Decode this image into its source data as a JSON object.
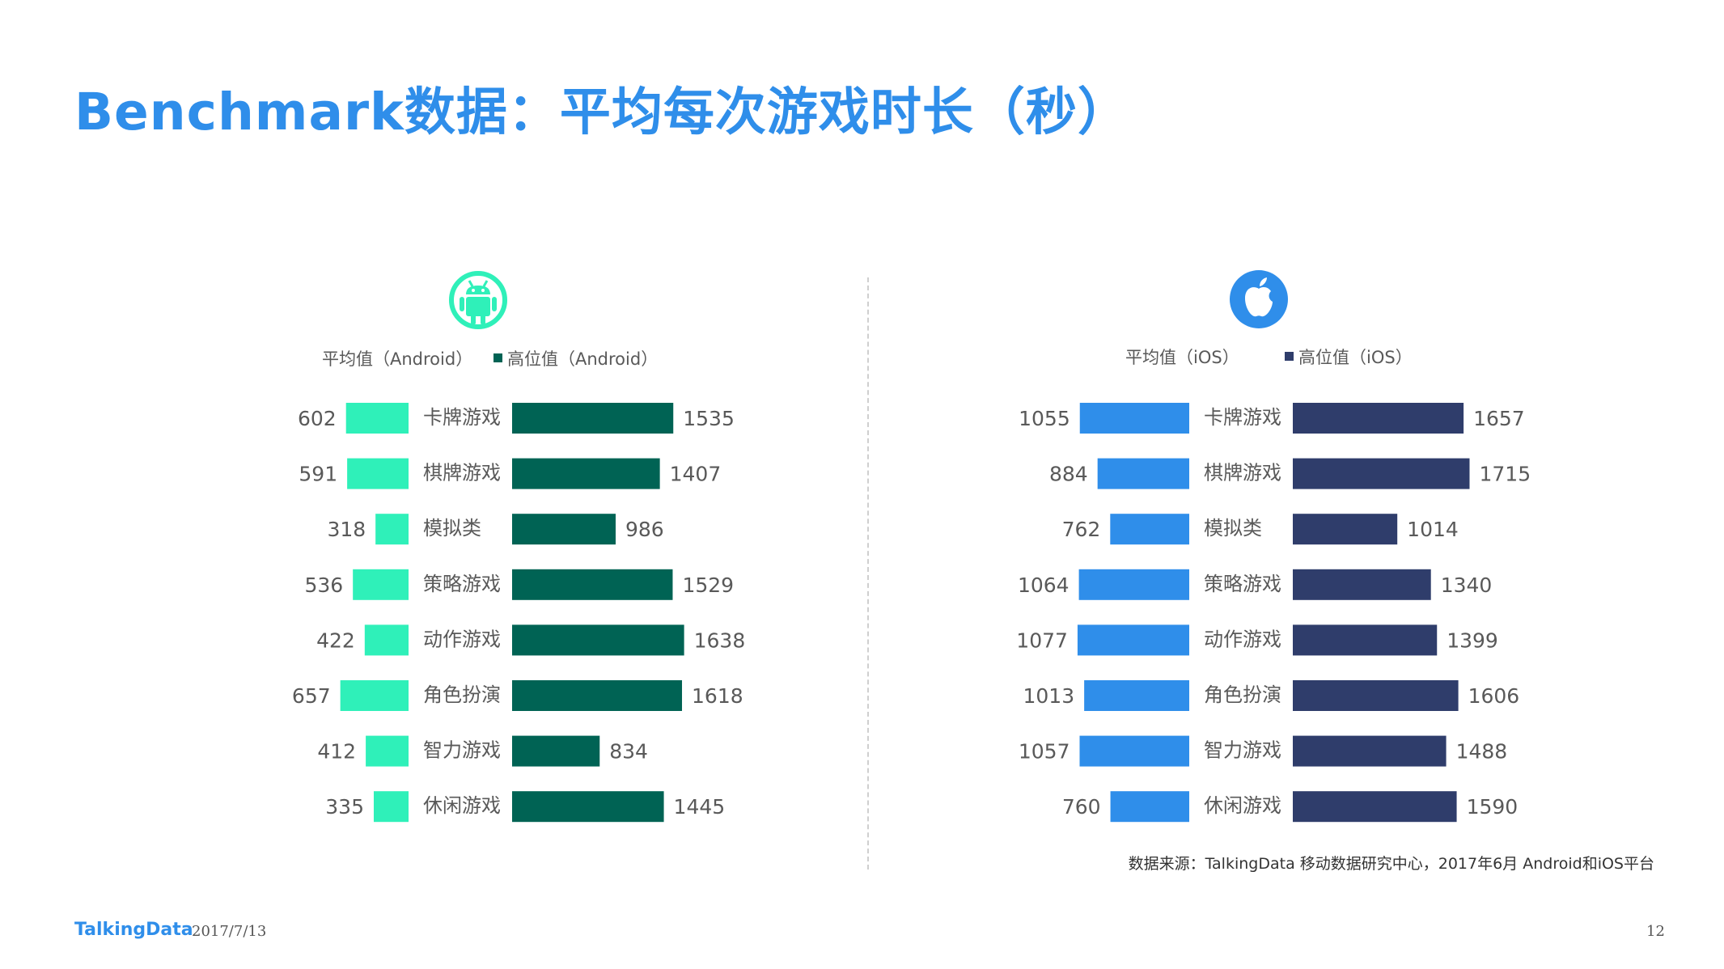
{
  "page": {
    "title": "Benchmark数据：平均每次游戏时长（秒）",
    "source": "数据来源：TalkingData 移动数据研究中心，2017年6月 Android和iOS平台",
    "footer_logo": "TalkingData",
    "footer_date": "2017/7/13",
    "page_number": "12"
  },
  "icons": {
    "android": "android-icon",
    "ios": "apple-icon"
  },
  "colors": {
    "android_avg": "#2ff0b9",
    "android_high": "#006354",
    "ios_avg": "#2f8eea",
    "ios_high": "#2f3d6b",
    "text": "#595959",
    "title": "#2f8eea"
  },
  "chart_data": [
    {
      "type": "bar",
      "platform": "Android",
      "categories": [
        "卡牌游戏",
        "棋牌游戏",
        "模拟类",
        "策略游戏",
        "动作游戏",
        "角色扮演",
        "智力游戏",
        "休闲游戏"
      ],
      "series": [
        {
          "name": "平均值（Android）",
          "values": [
            602,
            591,
            318,
            536,
            422,
            657,
            412,
            335
          ]
        },
        {
          "name": "高位值（Android）",
          "values": [
            1535,
            1407,
            986,
            1529,
            1638,
            1618,
            834,
            1445
          ]
        }
      ],
      "legend_position": "top",
      "orientation": "horizontal-butterfly"
    },
    {
      "type": "bar",
      "platform": "iOS",
      "categories": [
        "卡牌游戏",
        "棋牌游戏",
        "模拟类",
        "策略游戏",
        "动作游戏",
        "角色扮演",
        "智力游戏",
        "休闲游戏"
      ],
      "series": [
        {
          "name": "平均值（iOS）",
          "values": [
            1055,
            884,
            762,
            1064,
            1077,
            1013,
            1057,
            760
          ]
        },
        {
          "name": "高位值（iOS）",
          "values": [
            1657,
            1715,
            1014,
            1340,
            1399,
            1606,
            1488,
            1590
          ]
        }
      ],
      "legend_position": "top",
      "orientation": "horizontal-butterfly"
    }
  ]
}
